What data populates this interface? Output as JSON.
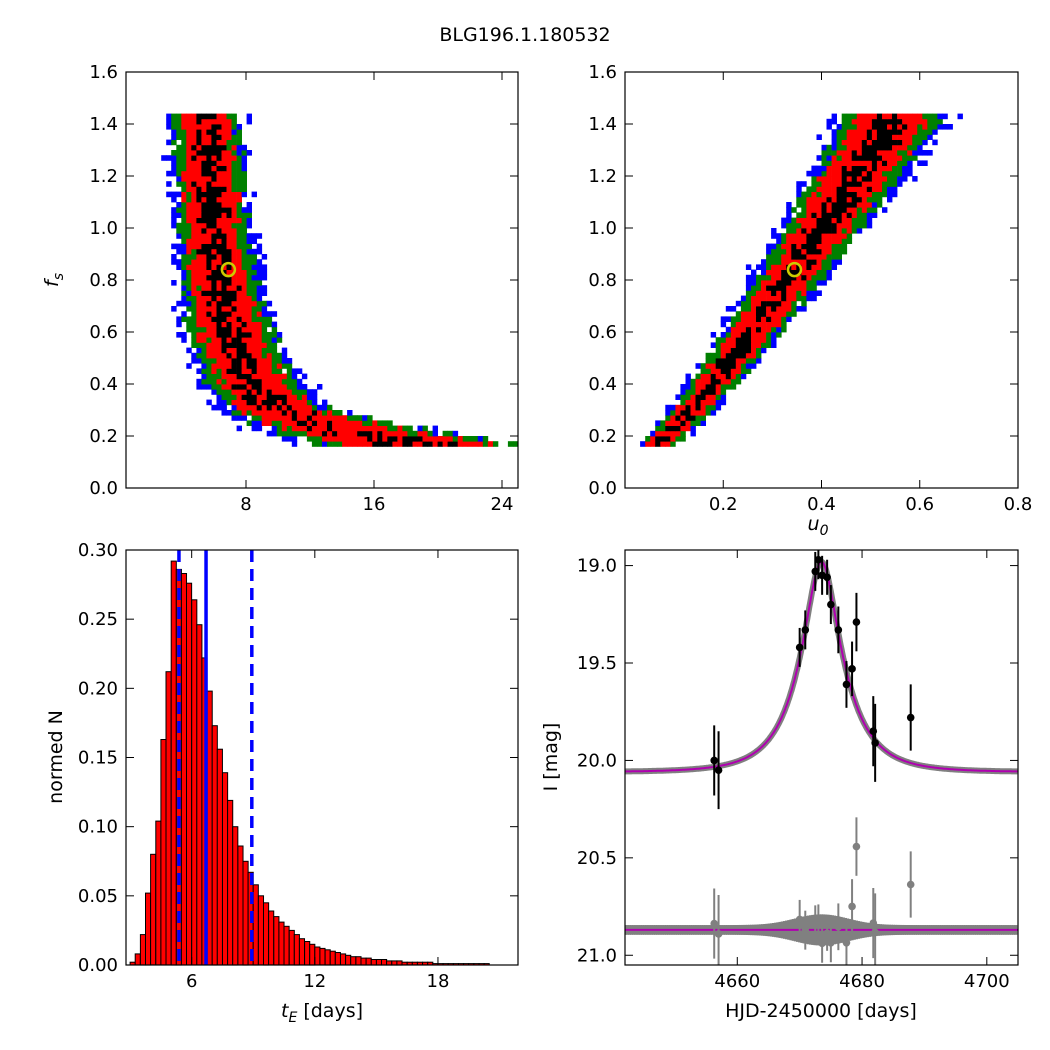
{
  "figure": {
    "title": "BLG196.1.180532"
  },
  "chart_data": [
    {
      "id": "tE-vs-fs",
      "type": "heatmap",
      "xlabel": "",
      "ylabel": "f_s",
      "xlim": [
        0.5,
        25
      ],
      "ylim": [
        0.0,
        1.6
      ],
      "xticks": [
        8,
        16,
        24
      ],
      "yticks": [
        0.0,
        0.2,
        0.4,
        0.6,
        0.8,
        1.0,
        1.2,
        1.4,
        1.6
      ],
      "levels": [
        {
          "name": "outer",
          "color": "#0000ff"
        },
        {
          "name": "middle",
          "color": "#008000"
        },
        {
          "name": "inner",
          "color": "#ff0000"
        },
        {
          "name": "core",
          "color": "#000000"
        }
      ],
      "ridge": [
        [
          4.2,
          1.44
        ],
        [
          5.2,
          1.2
        ],
        [
          5.8,
          1.0
        ],
        [
          6.6,
          0.84
        ],
        [
          7.8,
          0.6
        ],
        [
          9.0,
          0.45
        ],
        [
          11.5,
          0.32
        ],
        [
          16.5,
          0.18
        ],
        [
          20.5,
          0.17
        ]
      ],
      "best_fit": {
        "x": 6.9,
        "y": 0.84,
        "color": "#cccc00"
      }
    },
    {
      "id": "u0-vs-fs",
      "type": "heatmap",
      "xlabel": "u_0",
      "ylabel": "",
      "xlim": [
        0.0,
        0.8
      ],
      "ylim": [
        0.0,
        1.6
      ],
      "xticks": [
        0.2,
        0.4,
        0.6,
        0.8
      ],
      "yticks": [
        0.0,
        0.2,
        0.4,
        0.6,
        0.8,
        1.0,
        1.2,
        1.4,
        1.6
      ],
      "levels": [
        {
          "name": "outer",
          "color": "#0000ff"
        },
        {
          "name": "middle",
          "color": "#008000"
        },
        {
          "name": "inner",
          "color": "#ff0000"
        },
        {
          "name": "core",
          "color": "#000000"
        }
      ],
      "ridge": [
        [
          0.05,
          0.18
        ],
        [
          0.12,
          0.28
        ],
        [
          0.2,
          0.45
        ],
        [
          0.27,
          0.62
        ],
        [
          0.34,
          0.84
        ],
        [
          0.42,
          1.1
        ],
        [
          0.5,
          1.35
        ],
        [
          0.54,
          1.44
        ]
      ],
      "best_fit": {
        "x": 0.345,
        "y": 0.84,
        "color": "#cccc00"
      }
    },
    {
      "id": "tE-histogram",
      "type": "bar",
      "xlabel": "t_E  [days]",
      "ylabel": "normed N",
      "xlim": [
        2.8,
        21.9
      ],
      "ylim": [
        0.0,
        0.3
      ],
      "xticks": [
        6,
        12,
        18
      ],
      "yticks": [
        0.0,
        0.05,
        0.1,
        0.15,
        0.2,
        0.25,
        0.3
      ],
      "bin_width": 0.25,
      "bin_start": 3.0,
      "values": [
        0.002,
        0.008,
        0.022,
        0.052,
        0.08,
        0.104,
        0.163,
        0.212,
        0.292,
        0.286,
        0.283,
        0.276,
        0.264,
        0.246,
        0.222,
        0.198,
        0.173,
        0.156,
        0.139,
        0.119,
        0.1,
        0.086,
        0.075,
        0.067,
        0.058,
        0.05,
        0.045,
        0.039,
        0.035,
        0.031,
        0.028,
        0.025,
        0.022,
        0.019,
        0.017,
        0.015,
        0.013,
        0.012,
        0.011,
        0.01,
        0.009,
        0.008,
        0.007,
        0.006,
        0.006,
        0.005,
        0.005,
        0.004,
        0.004,
        0.004,
        0.003,
        0.003,
        0.003,
        0.002,
        0.002,
        0.002,
        0.002,
        0.002,
        0.002,
        0.001,
        0.001,
        0.001,
        0.001,
        0.001,
        0.001,
        0.001,
        0.001,
        0.001,
        0.001,
        0.001
      ],
      "bar_color": "#ff0000",
      "median": 6.7,
      "interval": [
        5.38,
        8.93
      ],
      "marker_color": "#0000ff"
    },
    {
      "id": "light-curve",
      "type": "scatter",
      "xlabel": "HJD-2450000 [days]",
      "ylabel": "I [mag]",
      "xlim": [
        4642,
        4705
      ],
      "ylim": [
        21.05,
        18.92
      ],
      "xticks": [
        4660,
        4680,
        4700
      ],
      "yticks": [
        19.0,
        19.5,
        20.0,
        20.5,
        21.0
      ],
      "model": {
        "t0": 4673.5,
        "tE": 6.9,
        "u0": 0.345,
        "fs": 0.84,
        "base": 20.06,
        "color": "#b000b0",
        "band_color": "#808080"
      },
      "residual_offset": 20.87,
      "points": [
        {
          "x": 4656.3,
          "y": 20.0,
          "err": 0.18
        },
        {
          "x": 4657.0,
          "y": 20.05,
          "err": 0.2
        },
        {
          "x": 4670.0,
          "y": 19.42,
          "err": 0.1
        },
        {
          "x": 4670.9,
          "y": 19.33,
          "err": 0.1
        },
        {
          "x": 4672.5,
          "y": 19.03,
          "err": 0.1
        },
        {
          "x": 4673.0,
          "y": 18.97,
          "err": 0.1
        },
        {
          "x": 4673.6,
          "y": 19.05,
          "err": 0.1
        },
        {
          "x": 4674.4,
          "y": 19.06,
          "err": 0.09
        },
        {
          "x": 4675.0,
          "y": 19.2,
          "err": 0.1
        },
        {
          "x": 4676.2,
          "y": 19.33,
          "err": 0.12
        },
        {
          "x": 4677.5,
          "y": 19.61,
          "err": 0.12
        },
        {
          "x": 4678.4,
          "y": 19.53,
          "err": 0.14
        },
        {
          "x": 4679.1,
          "y": 19.29,
          "err": 0.15
        },
        {
          "x": 4681.8,
          "y": 19.85,
          "err": 0.18
        },
        {
          "x": 4682.1,
          "y": 19.91,
          "err": 0.2
        },
        {
          "x": 4687.8,
          "y": 19.78,
          "err": 0.17
        }
      ]
    }
  ]
}
